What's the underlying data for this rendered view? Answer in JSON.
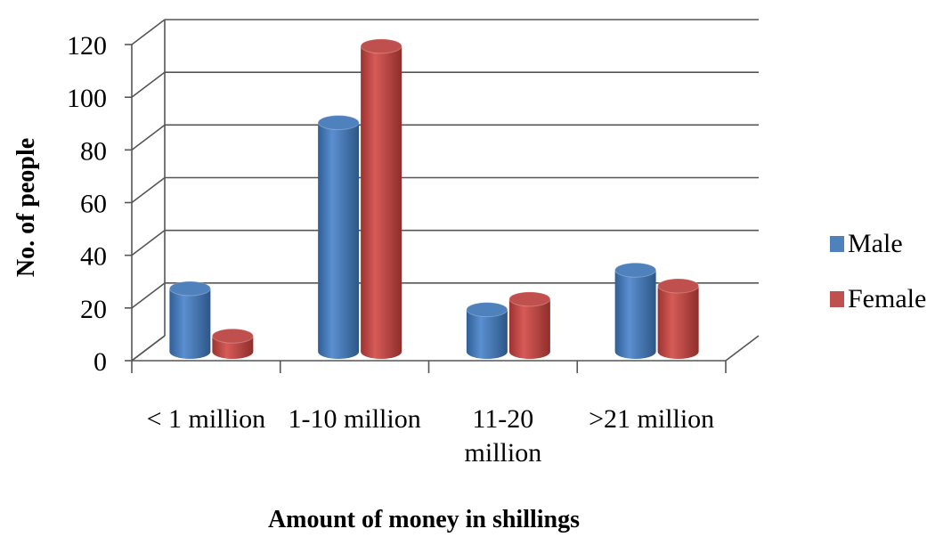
{
  "chart_data": {
    "type": "bar",
    "title": "",
    "xlabel": "Amount  of money in shillings",
    "ylabel": "No. of people",
    "ylim": [
      0,
      120
    ],
    "yticks": [
      "0",
      "20",
      "40",
      "60",
      "80",
      "100",
      "120"
    ],
    "categories": [
      [
        "< 1 million"
      ],
      [
        "1-10 million"
      ],
      [
        "11-20",
        "million"
      ],
      [
        ">21 million"
      ]
    ],
    "series": [
      {
        "name": "Male",
        "color": "#4f81bd",
        "values": [
          24,
          87,
          16,
          31
        ]
      },
      {
        "name": "Female",
        "color": "#c0504d",
        "values": [
          6,
          116,
          20,
          25
        ]
      }
    ],
    "legend_position": "right",
    "grid": true,
    "style": "3d-cylinder"
  }
}
